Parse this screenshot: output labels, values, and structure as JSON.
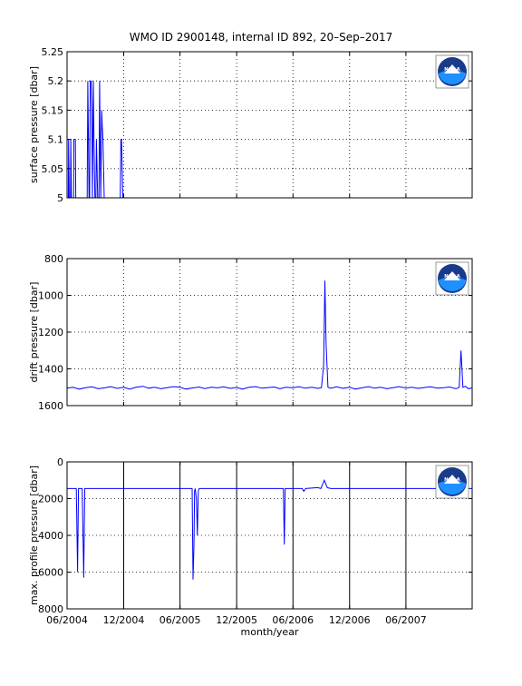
{
  "title": "WMO ID 2900148, internal ID 892, 20–Sep–2017",
  "colors": {
    "line": "#0000ff",
    "grid": "#000000",
    "noaa_blue": "#1a3a8a",
    "noaa_sky": "#1e90ff"
  },
  "logo_text": "NOAA",
  "x_axis": {
    "label": "month/year",
    "ticks": [
      "06/2004",
      "12/2004",
      "06/2005",
      "12/2005",
      "06/2006",
      "12/2006",
      "06/2007"
    ],
    "range": [
      "06/2004",
      "01/2008"
    ]
  },
  "chart_data": [
    {
      "type": "line",
      "ylabel": "surface pressure [dbar]",
      "ylim": [
        5,
        5.25
      ],
      "y_reversed": false,
      "yticks": [
        "5",
        "5.05",
        "5.1",
        "5.15",
        "5.2",
        "5.25"
      ],
      "ytick_values": [
        5,
        5.05,
        5.1,
        5.15,
        5.2,
        5.25
      ],
      "grid": true,
      "series": [
        {
          "x": [
            "2004-06-01",
            "2004-06-05",
            "2004-06-06",
            "2004-06-08",
            "2004-06-12",
            "2004-06-13",
            "2004-06-15",
            "2004-06-22",
            "2004-06-23",
            "2004-06-25",
            "2004-06-28",
            "2004-06-29",
            "2004-07-01",
            "2004-08-05",
            "2004-08-07",
            "2004-08-09",
            "2004-08-11",
            "2004-08-13",
            "2004-08-15",
            "2004-08-18",
            "2004-08-20",
            "2004-08-22",
            "2004-08-25",
            "2004-08-27",
            "2004-08-30",
            "2004-09-02",
            "2004-09-04",
            "2004-09-08",
            "2004-09-10",
            "2004-09-12",
            "2004-09-14",
            "2004-09-16",
            "2004-09-18",
            "2004-09-21",
            "2004-09-23",
            "2004-09-25",
            "2004-09-27",
            "2004-09-29",
            "2004-10-01",
            "2004-10-03",
            "2004-10-05",
            "2004-10-07",
            "2004-10-09",
            "2004-11-20",
            "2004-11-22",
            "2004-11-24",
            "2004-11-26",
            "2004-11-28",
            "2008-01-01"
          ],
          "y": [
            5,
            5,
            5.1,
            5,
            5,
            5.1,
            5,
            5,
            5.1,
            5.1,
            5.1,
            5,
            5,
            5,
            5.2,
            5.1,
            5,
            5,
            5.2,
            5.2,
            5.15,
            5,
            5.2,
            5.1,
            5,
            5,
            5.1,
            5,
            5,
            5,
            5.2,
            5.1,
            5,
            5.15,
            5.12,
            5.1,
            5.05,
            5,
            5,
            5,
            5,
            5,
            5,
            5,
            5.1,
            5.1,
            5.05,
            5,
            5
          ]
        }
      ]
    },
    {
      "type": "line",
      "ylabel": "drift pressure [dbar]",
      "ylim": [
        800,
        1600
      ],
      "y_reversed": true,
      "yticks": [
        "800",
        "1000",
        "1200",
        "1400",
        "1600"
      ],
      "ytick_values": [
        800,
        1000,
        1200,
        1400,
        1600
      ],
      "grid": true,
      "series": [
        {
          "x": [
            "2004-06-01",
            "2004-06-20",
            "2004-07-10",
            "2004-08-01",
            "2004-08-20",
            "2004-09-10",
            "2004-10-01",
            "2004-10-20",
            "2004-11-10",
            "2004-12-01",
            "2004-12-20",
            "2005-01-10",
            "2005-02-01",
            "2005-02-20",
            "2005-03-10",
            "2005-04-01",
            "2005-04-20",
            "2005-05-10",
            "2005-06-01",
            "2005-06-20",
            "2005-07-10",
            "2005-08-01",
            "2005-08-20",
            "2005-09-10",
            "2005-10-01",
            "2005-10-20",
            "2005-11-10",
            "2005-12-01",
            "2005-12-20",
            "2006-01-10",
            "2006-02-01",
            "2006-02-20",
            "2006-03-10",
            "2006-04-01",
            "2006-04-20",
            "2006-05-10",
            "2006-06-01",
            "2006-06-20",
            "2006-07-10",
            "2006-08-01",
            "2006-08-20",
            "2006-09-01",
            "2006-09-08",
            "2006-09-12",
            "2006-09-16",
            "2006-09-22",
            "2006-10-01",
            "2006-10-20",
            "2006-11-10",
            "2006-12-01",
            "2006-12-20",
            "2007-01-10",
            "2007-02-01",
            "2007-02-20",
            "2007-03-10",
            "2007-04-01",
            "2007-04-20",
            "2007-05-10",
            "2007-06-01",
            "2007-06-20",
            "2007-07-10",
            "2007-08-01",
            "2007-08-20",
            "2007-09-10",
            "2007-10-01",
            "2007-10-20",
            "2007-11-10",
            "2007-11-20",
            "2007-11-26",
            "2007-12-02",
            "2007-12-10",
            "2007-12-20",
            "2008-01-01"
          ],
          "y": [
            1505,
            1500,
            1510,
            1502,
            1498,
            1508,
            1503,
            1497,
            1506,
            1500,
            1510,
            1500,
            1495,
            1505,
            1500,
            1508,
            1502,
            1497,
            1500,
            1510,
            1504,
            1499,
            1507,
            1500,
            1503,
            1498,
            1506,
            1501,
            1510,
            1500,
            1497,
            1505,
            1502,
            1499,
            1508,
            1500,
            1503,
            1497,
            1505,
            1500,
            1506,
            1502,
            1380,
            920,
            1260,
            1500,
            1505,
            1498,
            1506,
            1500,
            1510,
            1503,
            1497,
            1505,
            1500,
            1508,
            1502,
            1497,
            1504,
            1500,
            1506,
            1501,
            1498,
            1505,
            1502,
            1499,
            1508,
            1500,
            1300,
            1500,
            1495,
            1508,
            1503
          ]
        }
      ]
    },
    {
      "type": "line",
      "ylabel": "max. profile pressure [dbar]",
      "ylim": [
        0,
        8000
      ],
      "y_reversed": true,
      "yticks": [
        "0",
        "2000",
        "4000",
        "6000",
        "8000"
      ],
      "ytick_values": [
        0,
        2000,
        4000,
        6000,
        8000
      ],
      "grid": true,
      "series": [
        {
          "x": [
            "2004-06-01",
            "2004-06-20",
            "2004-07-01",
            "2004-07-05",
            "2004-07-08",
            "2004-07-10",
            "2004-07-20",
            "2004-07-25",
            "2004-07-28",
            "2004-08-01",
            "2004-08-04",
            "2004-08-10",
            "2005-06-01",
            "2005-07-10",
            "2005-07-13",
            "2005-07-16",
            "2005-07-18",
            "2005-07-20",
            "2005-07-24",
            "2005-07-27",
            "2005-07-30",
            "2005-08-02",
            "2005-08-05",
            "2005-08-10",
            "2006-04-01",
            "2006-05-01",
            "2006-05-04",
            "2006-05-07",
            "2006-05-10",
            "2006-06-10",
            "2006-07-01",
            "2006-07-06",
            "2006-07-12",
            "2006-08-20",
            "2006-08-30",
            "2006-09-10",
            "2006-09-20",
            "2006-10-01",
            "2007-06-01",
            "2008-01-01"
          ],
          "y": [
            1450,
            1450,
            1450,
            6000,
            1450,
            1450,
            1450,
            6300,
            1450,
            1450,
            1450,
            1450,
            1450,
            1450,
            6400,
            4600,
            1600,
            1450,
            2000,
            4000,
            1600,
            1450,
            1450,
            1450,
            1450,
            1450,
            4500,
            1450,
            1450,
            1450,
            1450,
            1600,
            1450,
            1400,
            1450,
            1000,
            1400,
            1450,
            1450,
            1450
          ]
        }
      ]
    }
  ]
}
